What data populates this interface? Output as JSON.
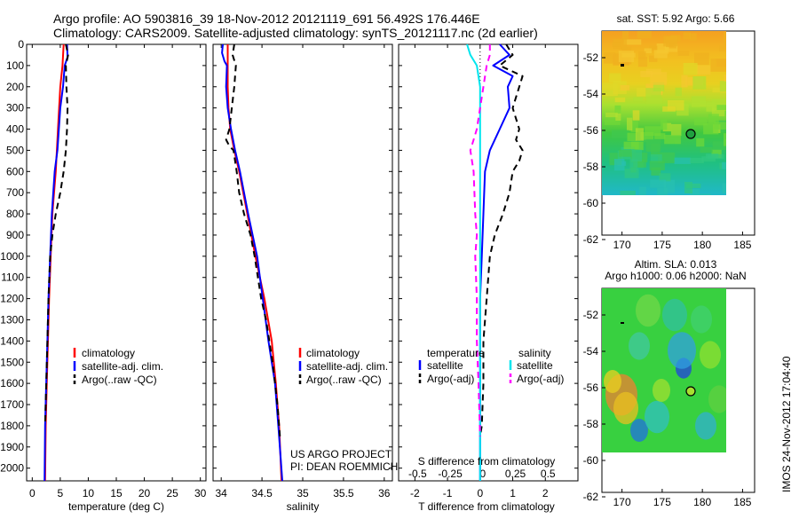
{
  "header": {
    "line1": "Argo profile: AO 5903816_39 18-Nov-2012 20121119_691 56.492S 176.446E",
    "line2": "Climatology: CARS2009. Satellite-adjusted climatology: synTS_20121117.nc (2d earlier)"
  },
  "colors": {
    "climatology": "#ff0000",
    "satellite": "#0000ff",
    "argo": "#000000",
    "salinity_sat": "#00e5ee",
    "salinity_argo": "#ff00ff"
  },
  "chart_data": [
    {
      "type": "line",
      "id": "temperature",
      "xlabel": "temperature (deg C)",
      "xlim": [
        -1,
        31
      ],
      "xticks": [
        0,
        5,
        10,
        15,
        20,
        25,
        30
      ],
      "ylim": [
        0,
        2060
      ],
      "yticks": [
        0,
        100,
        200,
        300,
        400,
        500,
        600,
        700,
        800,
        900,
        1000,
        1100,
        1200,
        1300,
        1400,
        1500,
        1600,
        1700,
        1800,
        1900,
        2000
      ],
      "legend": [
        "climatology",
        "satellite-adj. clim.",
        "Argo(..raw -QC)"
      ],
      "series": [
        {
          "name": "climatology",
          "points": [
            [
              5.6,
              0
            ],
            [
              5.4,
              100
            ],
            [
              5.0,
              200
            ],
            [
              4.6,
              400
            ],
            [
              4.2,
              600
            ],
            [
              3.6,
              800
            ],
            [
              3.3,
              1000
            ],
            [
              3.0,
              1200
            ],
            [
              2.8,
              1400
            ],
            [
              2.6,
              1600
            ],
            [
              2.4,
              1800
            ],
            [
              2.3,
              2060
            ]
          ]
        },
        {
          "name": "satellite-adj. clim.",
          "points": [
            [
              6.2,
              0
            ],
            [
              6.3,
              60
            ],
            [
              5.8,
              100
            ],
            [
              5.5,
              200
            ],
            [
              5.0,
              300
            ],
            [
              4.5,
              500
            ],
            [
              4.0,
              600
            ],
            [
              3.5,
              800
            ],
            [
              3.2,
              1000
            ],
            [
              2.9,
              1200
            ],
            [
              2.7,
              1400
            ],
            [
              2.5,
              1600
            ],
            [
              2.3,
              1800
            ],
            [
              2.2,
              2060
            ]
          ]
        },
        {
          "name": "Argo(..raw -QC)",
          "points": [
            [
              6.0,
              0
            ],
            [
              6.4,
              50
            ],
            [
              6.0,
              100
            ],
            [
              6.1,
              200
            ],
            [
              6.3,
              300
            ],
            [
              6.2,
              400
            ],
            [
              6.0,
              500
            ],
            [
              5.6,
              600
            ],
            [
              5.0,
              700
            ],
            [
              4.2,
              800
            ],
            [
              3.6,
              900
            ],
            [
              3.2,
              1000
            ],
            [
              2.9,
              1200
            ],
            [
              2.7,
              1400
            ],
            [
              2.5,
              1600
            ],
            [
              2.3,
              1800
            ]
          ]
        }
      ]
    },
    {
      "type": "line",
      "id": "salinity",
      "xlabel": "salinity",
      "xlim": [
        33.9,
        36.1
      ],
      "xticks": [
        34,
        34.5,
        35,
        35.5,
        36
      ],
      "xticklabels": [
        "34",
        "34.5",
        "35",
        "35.5",
        "36"
      ],
      "ylim": [
        0,
        2060
      ],
      "legend": [
        "climatology",
        "satellite-adj. clim.",
        "Argo(..raw -QC)"
      ],
      "series": [
        {
          "name": "climatology",
          "points": [
            [
              34.08,
              0
            ],
            [
              34.08,
              100
            ],
            [
              34.08,
              200
            ],
            [
              34.09,
              300
            ],
            [
              34.11,
              400
            ],
            [
              34.16,
              500
            ],
            [
              34.22,
              600
            ],
            [
              34.32,
              800
            ],
            [
              34.42,
              1000
            ],
            [
              34.53,
              1200
            ],
            [
              34.62,
              1400
            ],
            [
              34.67,
              1600
            ],
            [
              34.71,
              1800
            ],
            [
              34.74,
              2060
            ]
          ]
        },
        {
          "name": "satellite-adj. clim.",
          "points": [
            [
              34.02,
              0
            ],
            [
              34.01,
              40
            ],
            [
              34.04,
              80
            ],
            [
              34.07,
              100
            ],
            [
              34.06,
              200
            ],
            [
              34.08,
              300
            ],
            [
              34.12,
              400
            ],
            [
              34.17,
              500
            ],
            [
              34.23,
              600
            ],
            [
              34.33,
              800
            ],
            [
              34.44,
              1000
            ],
            [
              34.51,
              1200
            ],
            [
              34.58,
              1400
            ],
            [
              34.66,
              1600
            ],
            [
              34.7,
              1800
            ],
            [
              34.75,
              2060
            ]
          ]
        },
        {
          "name": "Argo(..raw -QC)",
          "points": [
            [
              34.16,
              0
            ],
            [
              34.14,
              50
            ],
            [
              34.18,
              100
            ],
            [
              34.16,
              200
            ],
            [
              34.13,
              300
            ],
            [
              34.1,
              400
            ],
            [
              34.06,
              450
            ],
            [
              34.1,
              480
            ],
            [
              34.15,
              500
            ],
            [
              34.19,
              600
            ],
            [
              34.22,
              700
            ],
            [
              34.28,
              800
            ],
            [
              34.36,
              900
            ],
            [
              34.41,
              1000
            ],
            [
              34.45,
              1100
            ],
            [
              34.49,
              1200
            ],
            [
              34.55,
              1300
            ],
            [
              34.59,
              1400
            ],
            [
              34.63,
              1500
            ],
            [
              34.66,
              1600
            ],
            [
              34.69,
              1700
            ],
            [
              34.71,
              1800
            ],
            [
              34.72,
              1850
            ]
          ]
        }
      ]
    },
    {
      "type": "line",
      "id": "difference",
      "xlabel": "T difference from climatology",
      "xlabel_top": "S difference from climatology",
      "xlim": [
        -2.5,
        3
      ],
      "xticks": [
        -2,
        -1,
        0,
        1,
        2
      ],
      "top_ticks": [
        [
          -2,
          "-0.5"
        ],
        [
          -1,
          "-0.25"
        ],
        [
          0,
          "0"
        ],
        [
          1,
          "0.25"
        ],
        [
          2,
          "0.5"
        ]
      ],
      "ylim": [
        0,
        2060
      ],
      "legend_left_title": "temperature",
      "legend_right_title": "salinity",
      "legend": [
        "satellite",
        "Argo(-adj)",
        "satellite",
        "Argo(-adj)"
      ],
      "series": [
        {
          "name": "T satellite",
          "points": [
            [
              0.6,
              0
            ],
            [
              0.9,
              50
            ],
            [
              0.4,
              100
            ],
            [
              1.0,
              150
            ],
            [
              0.85,
              200
            ],
            [
              0.9,
              300
            ],
            [
              0.6,
              400
            ],
            [
              0.3,
              500
            ],
            [
              0.15,
              600
            ],
            [
              0.1,
              800
            ],
            [
              0.05,
              1000
            ],
            [
              0.0,
              1200
            ],
            [
              0.0,
              1500
            ],
            [
              0.0,
              2060
            ]
          ]
        },
        {
          "name": "T Argo(-adj)",
          "points": [
            [
              0.8,
              0
            ],
            [
              1.0,
              50
            ],
            [
              0.6,
              100
            ],
            [
              1.3,
              150
            ],
            [
              1.2,
              200
            ],
            [
              1.1,
              250
            ],
            [
              1.0,
              300
            ],
            [
              1.2,
              400
            ],
            [
              1.1,
              450
            ],
            [
              1.3,
              500
            ],
            [
              1.2,
              550
            ],
            [
              1.0,
              600
            ],
            [
              0.9,
              700
            ],
            [
              0.7,
              800
            ],
            [
              0.45,
              900
            ],
            [
              0.3,
              1000
            ],
            [
              0.2,
              1200
            ],
            [
              0.1,
              1400
            ],
            [
              0.1,
              1600
            ],
            [
              0.05,
              1800
            ],
            [
              0.0,
              1850
            ]
          ]
        },
        {
          "name": "S satellite",
          "points": [
            [
              -0.4,
              0
            ],
            [
              -0.3,
              50
            ],
            [
              -0.1,
              100
            ],
            [
              0.0,
              200
            ],
            [
              0.0,
              500
            ],
            [
              0.0,
              2060
            ]
          ]
        },
        {
          "name": "S Argo(-adj)",
          "points": [
            [
              0.3,
              0
            ],
            [
              0.3,
              50
            ],
            [
              0.2,
              100
            ],
            [
              0.1,
              200
            ],
            [
              0.0,
              300
            ],
            [
              -0.1,
              400
            ],
            [
              -0.2,
              450
            ],
            [
              -0.3,
              500
            ],
            [
              -0.2,
              600
            ],
            [
              -0.15,
              800
            ],
            [
              -0.1,
              900
            ],
            [
              -0.15,
              1000
            ],
            [
              -0.1,
              1200
            ],
            [
              -0.1,
              1400
            ],
            [
              -0.05,
              1600
            ],
            [
              0.0,
              1850
            ]
          ]
        }
      ]
    }
  ],
  "maps": [
    {
      "title": "sat. SST: 5.92 Argo: 5.66",
      "xticks": [
        170,
        175,
        180,
        185
      ],
      "yticks": [
        "-52",
        "-54",
        "-56",
        "-58",
        "-60",
        "-62"
      ],
      "marker": {
        "lon": 176.446,
        "lat": -56.492
      }
    },
    {
      "title_line1": "Altim. SLA: 0.013",
      "title_line2": "Argo h1000: 0.06 h2000: NaN",
      "xticks": [
        170,
        175,
        180,
        185
      ],
      "yticks": [
        "-52",
        "-54",
        "-56",
        "-58",
        "-60",
        "-62"
      ],
      "marker": {
        "lon": 176.446,
        "lat": -56.492
      }
    }
  ],
  "credit": {
    "project": "US ARGO PROJECT",
    "pi": "PI: DEAN ROEMMICH"
  },
  "stamp": "IMOS 24-Nov-2012 17:04:40"
}
